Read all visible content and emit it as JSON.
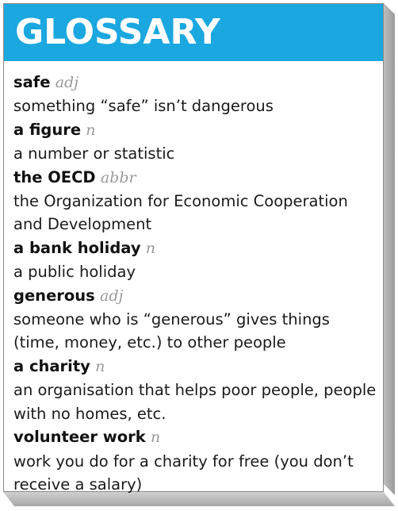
{
  "header": {
    "title": "GLOSSARY"
  },
  "entries": [
    {
      "term": "safe",
      "pos": "adj",
      "definition": "something “safe” isn’t dangerous"
    },
    {
      "term": "a figure",
      "pos": "n",
      "definition": "a number or statistic"
    },
    {
      "term": "the OECD",
      "pos": "abbr",
      "definition": "the Organization for Economic Cooperation and Development"
    },
    {
      "term": "a bank holiday",
      "pos": "n",
      "definition": "a public holiday"
    },
    {
      "term": "generous",
      "pos": "adj",
      "definition": "someone who is “generous” gives things (time, money, etc.) to other people"
    },
    {
      "term": "a charity",
      "pos": "n",
      "definition": "an organisation that helps poor people, people with no homes, etc."
    },
    {
      "term": "volunteer work",
      "pos": "n",
      "definition": "work you do for a charity for free (you don’t receive a salary)"
    }
  ],
  "colors": {
    "header_bg": "#1ba7df",
    "header_text": "#ffffff",
    "pos_text": "#9a9a9a"
  }
}
